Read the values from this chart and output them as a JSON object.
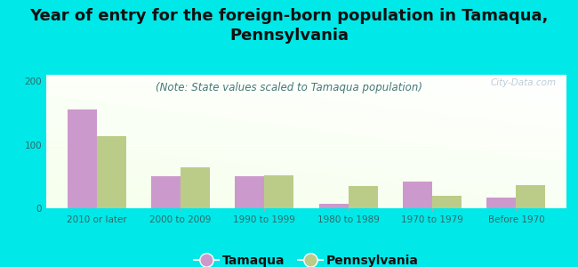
{
  "title": "Year of entry for the foreign-born population in Tamaqua,\nPennsylvania",
  "subtitle": "(Note: State values scaled to Tamaqua population)",
  "categories": [
    "2010 or later",
    "2000 to 2009",
    "1990 to 1999",
    "1980 to 1989",
    "1970 to 1979",
    "Before 1970"
  ],
  "tamaqua_values": [
    155,
    50,
    50,
    7,
    42,
    17
  ],
  "pennsylvania_values": [
    113,
    65,
    52,
    35,
    20,
    37
  ],
  "tamaqua_color": "#cc99cc",
  "pennsylvania_color": "#bbcc88",
  "background_color": "#00e8e8",
  "ylim": [
    0,
    210
  ],
  "yticks": [
    0,
    100,
    200
  ],
  "bar_width": 0.35,
  "title_fontsize": 13,
  "subtitle_fontsize": 8.5,
  "tick_fontsize": 7.5,
  "legend_fontsize": 10,
  "watermark": "City-Data.com"
}
